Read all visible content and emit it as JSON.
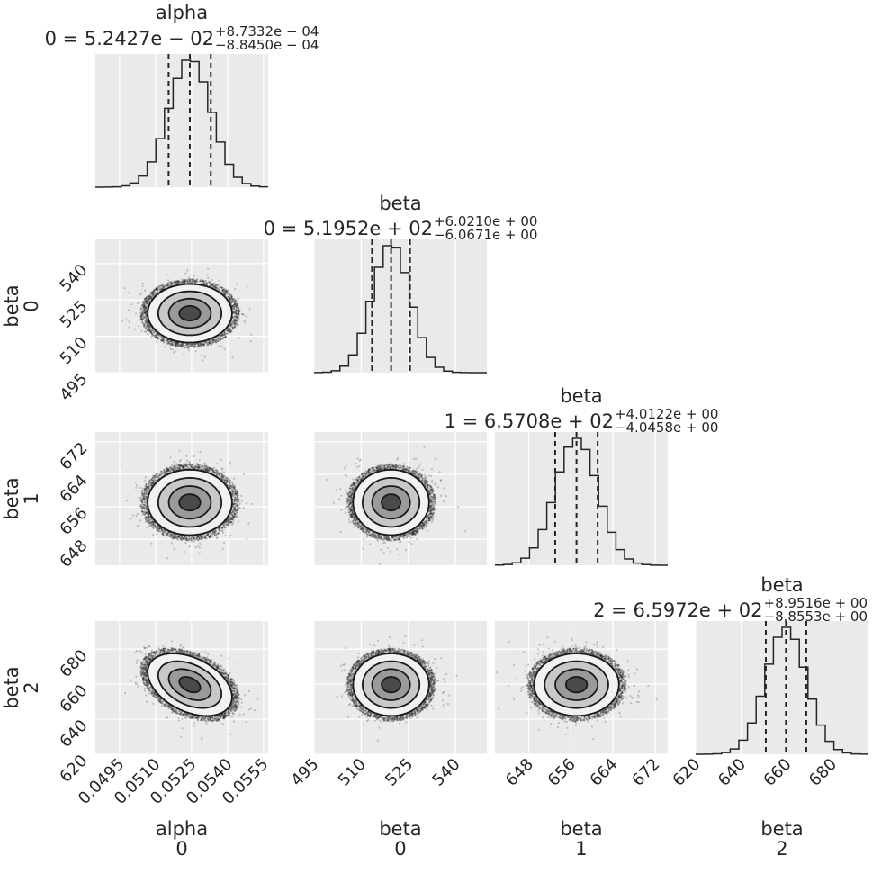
{
  "chart_data": {
    "type": "corner",
    "title": "",
    "params": [
      {
        "name": "alpha",
        "index": "0",
        "median": 0.052427,
        "plus": 0.00087332,
        "minus": 0.0008845,
        "title_value": "0 = 5.2427e − 02",
        "title_plus": "+8.7332e − 04",
        "title_minus": "−8.8450e − 04",
        "range": [
          0.04849,
          0.05569
        ],
        "ticks": [
          0.0495,
          0.051,
          0.0525,
          0.054,
          0.0555
        ],
        "tick_labels": [
          "0.0495",
          "0.0510",
          "0.0525",
          "0.0540",
          "0.0555"
        ]
      },
      {
        "name": "beta",
        "index": "0",
        "median": 519.52,
        "plus": 6.021,
        "minus": 6.0671,
        "title_value": "0 = 5.1952e + 02",
        "title_plus": "+6.0210e + 00",
        "title_minus": "−6.0671e + 00",
        "range": [
          495,
          550
        ],
        "ticks": [
          495,
          510,
          525,
          540
        ],
        "tick_labels": [
          "495",
          "510",
          "525",
          "540"
        ]
      },
      {
        "name": "beta",
        "index": "1",
        "median": 657.08,
        "plus": 4.0122,
        "minus": 4.0458,
        "title_value": "1 = 6.5708e + 02",
        "title_plus": "+4.0122e + 00",
        "title_minus": "−4.0458e + 00",
        "range": [
          641.6,
          674.4
        ],
        "ticks": [
          648,
          656,
          664,
          672
        ],
        "tick_labels": [
          "648",
          "656",
          "664",
          "672"
        ]
      },
      {
        "name": "beta",
        "index": "2",
        "median": 659.72,
        "plus": 8.9516,
        "minus": 8.8553,
        "title_value": "2 = 6.5972e + 02",
        "title_plus": "+8.9516e + 00",
        "title_minus": "−8.8553e + 00",
        "range": [
          620,
          696
        ],
        "ticks": [
          620,
          640,
          660,
          680
        ],
        "tick_labels": [
          "620",
          "640",
          "660",
          "680"
        ]
      }
    ],
    "correlations": {
      "0-3": -0.4,
      "0-1": 0,
      "0-2": 0,
      "1-2": 0,
      "1-3": 0,
      "2-3": 0
    },
    "quantiles": [
      0.16,
      0.5,
      0.84
    ],
    "contour_levels_sigma": [
      0.5,
      1,
      1.5,
      2
    ],
    "hist_bins": 20,
    "grid": true,
    "colors": {
      "panel_bg": "#eaeaea",
      "grid": "#ffffff",
      "line": "#262626"
    }
  }
}
